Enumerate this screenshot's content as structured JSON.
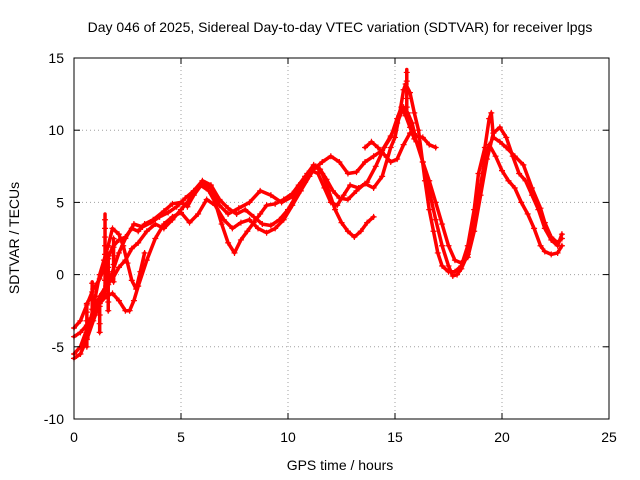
{
  "chart_data": {
    "type": "scatter",
    "title": "Day 046 of 2025, Sidereal Day-to-day VTEC variation (SDTVAR) for receiver lpgs",
    "xlabel": "GPS time / hours",
    "ylabel": "SDTVAR / TECUs",
    "xlim": [
      0,
      25
    ],
    "ylim": [
      -10,
      15
    ],
    "xticks": [
      "0",
      "5",
      "10",
      "15",
      "20",
      "25"
    ],
    "yticks": [
      "-10",
      "-5",
      "0",
      "5",
      "10",
      "15"
    ],
    "xtick_values": [
      0,
      5,
      10,
      15,
      20,
      25
    ],
    "ytick_values": [
      -10,
      -5,
      0,
      5,
      10,
      15
    ],
    "grid": true,
    "marker": "+",
    "color": "#ff0000",
    "series": [
      {
        "name": "trace-1",
        "points": [
          [
            0,
            -3.7
          ],
          [
            0.3,
            -3.2
          ],
          [
            0.6,
            -2.1
          ],
          [
            0.9,
            -1.0
          ],
          [
            1.2,
            -0.3
          ],
          [
            1.5,
            0.8
          ],
          [
            1.8,
            1.9
          ],
          [
            2.1,
            2.4
          ],
          [
            2.4,
            2.6
          ],
          [
            2.7,
            3.2
          ],
          [
            3.0,
            3.0
          ],
          [
            3.3,
            3.5
          ],
          [
            3.7,
            3.8
          ],
          [
            4.2,
            4.4
          ],
          [
            4.6,
            4.9
          ],
          [
            5.0,
            5.0
          ],
          [
            5.3,
            4.7
          ],
          [
            5.6,
            5.5
          ],
          [
            6.0,
            6.3
          ],
          [
            6.4,
            6.0
          ],
          [
            6.8,
            4.8
          ],
          [
            7.2,
            4.2
          ],
          [
            7.7,
            4.6
          ],
          [
            8.2,
            5.0
          ],
          [
            8.7,
            5.8
          ],
          [
            9.2,
            5.5
          ],
          [
            9.7,
            5.0
          ],
          [
            10.2,
            5.4
          ],
          [
            10.6,
            6.0
          ],
          [
            10.9,
            7.0
          ],
          [
            11.2,
            7.6
          ],
          [
            11.5,
            7.3
          ],
          [
            11.8,
            6.6
          ],
          [
            12.1,
            5.8
          ],
          [
            12.4,
            5.3
          ],
          [
            12.8,
            5.2
          ],
          [
            13.2,
            5.8
          ],
          [
            13.6,
            6.3
          ],
          [
            14.0,
            6.0
          ],
          [
            14.4,
            6.8
          ],
          [
            14.8,
            8.8
          ],
          [
            15.0,
            9.5
          ],
          [
            15.2,
            11.0
          ],
          [
            15.4,
            12.8
          ],
          [
            15.5,
            13.2
          ],
          [
            15.7,
            12.6
          ],
          [
            15.9,
            11.2
          ],
          [
            16.1,
            10.0
          ],
          [
            16.4,
            6.5
          ],
          [
            16.6,
            4.5
          ],
          [
            16.8,
            3.0
          ],
          [
            17.0,
            1.5
          ],
          [
            17.2,
            0.6
          ],
          [
            17.5,
            0.2
          ],
          [
            17.8,
            0.2
          ],
          [
            18.1,
            0.6
          ],
          [
            18.4,
            2.0
          ],
          [
            18.7,
            4.5
          ],
          [
            18.9,
            7.0
          ],
          [
            19.2,
            8.8
          ],
          [
            19.4,
            10.8
          ],
          [
            19.5,
            11.2
          ],
          [
            19.6,
            9.5
          ],
          [
            19.9,
            9.2
          ],
          [
            20.2,
            8.8
          ],
          [
            20.6,
            8.2
          ],
          [
            21.0,
            7.6
          ],
          [
            21.4,
            6.0
          ],
          [
            21.8,
            4.6
          ],
          [
            22.0,
            3.6
          ],
          [
            22.3,
            2.6
          ],
          [
            22.6,
            2.2
          ],
          [
            22.8,
            2.5
          ]
        ]
      },
      {
        "name": "trace-2",
        "points": [
          [
            0,
            -5.8
          ],
          [
            0.3,
            -5.5
          ],
          [
            0.6,
            -4.5
          ],
          [
            0.9,
            -3.2
          ],
          [
            1.2,
            -2.0
          ],
          [
            1.5,
            -1.0
          ],
          [
            1.8,
            0.2
          ],
          [
            2.1,
            1.5
          ],
          [
            2.4,
            2.5
          ],
          [
            2.8,
            3.5
          ],
          [
            3.2,
            3.3
          ],
          [
            3.6,
            3.6
          ],
          [
            4.0,
            4.0
          ],
          [
            4.4,
            4.3
          ],
          [
            4.8,
            4.7
          ],
          [
            5.2,
            5.3
          ],
          [
            5.6,
            5.8
          ],
          [
            6.0,
            6.5
          ],
          [
            6.4,
            6.2
          ],
          [
            6.8,
            5.2
          ],
          [
            7.2,
            4.6
          ],
          [
            7.6,
            4.2
          ],
          [
            8.0,
            4.5
          ],
          [
            8.4,
            4.0
          ],
          [
            8.8,
            3.5
          ],
          [
            9.2,
            3.4
          ],
          [
            9.6,
            3.8
          ],
          [
            10.0,
            4.5
          ],
          [
            10.4,
            5.5
          ],
          [
            10.8,
            6.4
          ],
          [
            11.2,
            7.3
          ],
          [
            11.6,
            7.8
          ],
          [
            12.0,
            8.2
          ],
          [
            12.4,
            7.8
          ],
          [
            12.8,
            7.0
          ],
          [
            13.2,
            7.1
          ],
          [
            13.6,
            7.8
          ],
          [
            14.0,
            8.2
          ],
          [
            14.4,
            8.6
          ],
          [
            14.8,
            9.6
          ],
          [
            15.1,
            10.5
          ],
          [
            15.4,
            11.6
          ],
          [
            15.6,
            11.2
          ],
          [
            15.8,
            10.5
          ],
          [
            16.0,
            9.2
          ],
          [
            16.3,
            7.8
          ],
          [
            16.6,
            6.5
          ],
          [
            16.9,
            5.0
          ],
          [
            17.2,
            3.5
          ],
          [
            17.5,
            2.0
          ],
          [
            17.8,
            1.0
          ],
          [
            18.1,
            0.8
          ],
          [
            18.4,
            1.2
          ],
          [
            18.7,
            3.0
          ],
          [
            19.0,
            5.5
          ],
          [
            19.3,
            8.0
          ],
          [
            19.6,
            9.8
          ],
          [
            19.9,
            10.2
          ],
          [
            20.2,
            9.5
          ],
          [
            20.5,
            8.2
          ],
          [
            20.8,
            7.0
          ],
          [
            21.1,
            6.5
          ],
          [
            21.4,
            5.5
          ],
          [
            21.7,
            4.5
          ],
          [
            22.0,
            3.2
          ],
          [
            22.3,
            2.4
          ],
          [
            22.6,
            2.0
          ],
          [
            22.8,
            2.8
          ]
        ]
      },
      {
        "name": "trace-3",
        "points": [
          [
            0,
            -4.3
          ],
          [
            0.3,
            -4.0
          ],
          [
            0.6,
            -3.5
          ],
          [
            0.9,
            -2.8
          ],
          [
            1.2,
            -2.0
          ],
          [
            1.5,
            -1.5
          ],
          [
            1.8,
            -1.3
          ],
          [
            2.1,
            -1.8
          ],
          [
            2.4,
            -2.5
          ],
          [
            2.6,
            -2.5
          ],
          [
            2.8,
            -1.8
          ],
          [
            3.0,
            -0.8
          ],
          [
            3.4,
            1.0
          ],
          [
            3.8,
            2.5
          ],
          [
            4.2,
            3.5
          ],
          [
            4.6,
            4.0
          ],
          [
            5.0,
            4.3
          ],
          [
            5.4,
            3.6
          ],
          [
            5.8,
            4.2
          ],
          [
            6.2,
            5.2
          ],
          [
            6.6,
            4.8
          ],
          [
            7.0,
            3.8
          ],
          [
            7.4,
            3.2
          ],
          [
            7.8,
            3.6
          ],
          [
            8.2,
            3.8
          ],
          [
            8.6,
            3.2
          ],
          [
            9.0,
            2.9
          ],
          [
            9.4,
            3.2
          ],
          [
            9.8,
            3.8
          ],
          [
            10.2,
            4.8
          ],
          [
            10.6,
            5.8
          ],
          [
            11.0,
            6.8
          ],
          [
            11.3,
            7.5
          ],
          [
            11.6,
            7.0
          ],
          [
            11.9,
            5.8
          ],
          [
            12.2,
            4.5
          ],
          [
            12.5,
            3.6
          ],
          [
            12.8,
            3.0
          ],
          [
            13.1,
            2.6
          ],
          [
            13.4,
            3.0
          ],
          [
            13.7,
            3.6
          ],
          [
            14.0,
            4.0
          ]
        ]
      },
      {
        "name": "trace-4",
        "points": [
          [
            0,
            -5.5
          ],
          [
            0.3,
            -5.0
          ],
          [
            0.6,
            -3.8
          ],
          [
            0.9,
            -2.5
          ],
          [
            1.2,
            -1.5
          ],
          [
            1.5,
            -0.8
          ],
          [
            1.8,
            -0.3
          ],
          [
            2.1,
            0.5
          ],
          [
            2.4,
            1.0
          ],
          [
            2.7,
            1.8
          ],
          [
            3.0,
            2.2
          ],
          [
            3.4,
            3.0
          ],
          [
            3.8,
            3.5
          ],
          [
            4.2,
            3.2
          ],
          [
            4.6,
            3.8
          ],
          [
            5.0,
            4.5
          ],
          [
            5.3,
            5.0
          ],
          [
            5.6,
            5.8
          ],
          [
            5.9,
            6.2
          ],
          [
            6.3,
            5.8
          ],
          [
            6.6,
            5.0
          ],
          [
            6.9,
            3.5
          ],
          [
            7.2,
            2.2
          ],
          [
            7.5,
            1.5
          ],
          [
            7.8,
            2.4
          ],
          [
            8.1,
            3.0
          ],
          [
            8.4,
            3.6
          ],
          [
            8.7,
            4.2
          ],
          [
            9.0,
            4.8
          ],
          [
            9.4,
            4.9
          ],
          [
            9.8,
            5.2
          ],
          [
            10.2,
            5.6
          ],
          [
            10.5,
            6.2
          ],
          [
            10.8,
            6.8
          ],
          [
            11.1,
            7.2
          ],
          [
            11.4,
            7.0
          ],
          [
            11.7,
            6.0
          ],
          [
            12.0,
            5.0
          ],
          [
            12.3,
            4.8
          ],
          [
            12.6,
            5.5
          ],
          [
            12.9,
            6.2
          ],
          [
            13.3,
            6.0
          ],
          [
            13.7,
            6.4
          ],
          [
            14.1,
            7.5
          ],
          [
            14.5,
            8.8
          ],
          [
            14.8,
            9.5
          ],
          [
            15.1,
            10.8
          ],
          [
            15.3,
            11.6
          ],
          [
            15.5,
            11.0
          ],
          [
            15.7,
            10.2
          ],
          [
            15.9,
            9.4
          ],
          [
            16.1,
            9.0
          ],
          [
            16.3,
            7.8
          ],
          [
            16.6,
            5.8
          ],
          [
            16.9,
            3.8
          ],
          [
            17.2,
            2.0
          ],
          [
            17.5,
            0.6
          ],
          [
            17.7,
            -0.1
          ],
          [
            17.9,
            0.0
          ],
          [
            18.1,
            0.4
          ],
          [
            18.4,
            1.4
          ],
          [
            18.7,
            3.8
          ],
          [
            19.0,
            6.2
          ],
          [
            19.2,
            8.0
          ],
          [
            19.4,
            9.0
          ],
          [
            19.7,
            8.2
          ],
          [
            20.0,
            7.2
          ],
          [
            20.3,
            6.5
          ],
          [
            20.6,
            6.0
          ],
          [
            20.9,
            5.0
          ],
          [
            21.2,
            4.2
          ],
          [
            21.5,
            3.2
          ],
          [
            21.8,
            2.0
          ],
          [
            22.0,
            1.6
          ],
          [
            22.3,
            1.4
          ],
          [
            22.6,
            1.5
          ],
          [
            22.8,
            2.0
          ]
        ]
      },
      {
        "name": "trace-5",
        "points": [
          [
            0.5,
            -4.5
          ],
          [
            0.8,
            -3.0
          ],
          [
            1.0,
            -1.5
          ],
          [
            1.2,
            0.0
          ],
          [
            1.4,
            1.0
          ],
          [
            1.6,
            2.0
          ],
          [
            1.8,
            3.2
          ],
          [
            2.1,
            2.8
          ],
          [
            2.3,
            2.0
          ],
          [
            2.5,
            0.8
          ],
          [
            2.7,
            -0.4
          ],
          [
            2.9,
            -1.0
          ],
          [
            3.1,
            0.2
          ],
          [
            3.3,
            1.5
          ]
        ]
      },
      {
        "name": "trace-6",
        "points": [
          [
            13.6,
            8.8
          ],
          [
            13.9,
            9.2
          ],
          [
            14.2,
            8.8
          ],
          [
            14.5,
            8.3
          ],
          [
            14.8,
            7.8
          ],
          [
            15.1,
            8.0
          ],
          [
            15.4,
            9.0
          ],
          [
            15.7,
            9.8
          ],
          [
            16.0,
            9.6
          ],
          [
            16.3,
            9.5
          ],
          [
            16.6,
            9.0
          ],
          [
            16.9,
            8.8
          ]
        ]
      }
    ],
    "spikes": [
      {
        "x": 0.6,
        "y0": -5.0,
        "y1": -2.0
      },
      {
        "x": 0.85,
        "y0": -3.0,
        "y1": -0.5
      },
      {
        "x": 1.2,
        "y0": -4.0,
        "y1": -1.8
      },
      {
        "x": 1.45,
        "y0": -1.0,
        "y1": 4.2
      },
      {
        "x": 1.6,
        "y0": -2.5,
        "y1": 1.5
      },
      {
        "x": 1.85,
        "y0": -0.5,
        "y1": 2.5
      },
      {
        "x": 15.55,
        "y0": 11.0,
        "y1": 14.2
      }
    ]
  }
}
